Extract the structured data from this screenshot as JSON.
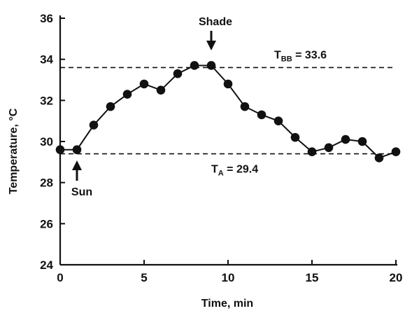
{
  "chart_data": {
    "type": "line",
    "title": "",
    "xlabel": "Time, min",
    "ylabel": "Temperature, °C",
    "xlim": [
      0,
      20
    ],
    "ylim": [
      24,
      36
    ],
    "x_ticks": [
      0,
      5,
      10,
      15,
      20
    ],
    "y_ticks": [
      24,
      26,
      28,
      30,
      32,
      34,
      36
    ],
    "grid": false,
    "series": [
      {
        "x": [
          0,
          1,
          2,
          3,
          4,
          5,
          6,
          7,
          8,
          9,
          10,
          11,
          12,
          13,
          14,
          15,
          16,
          17,
          18,
          19,
          20
        ],
        "y": [
          29.6,
          29.6,
          30.8,
          31.7,
          32.3,
          32.8,
          32.5,
          33.3,
          33.7,
          33.7,
          32.8,
          31.7,
          31.3,
          31.0,
          30.2,
          29.5,
          29.7,
          30.1,
          30.0,
          29.2,
          29.5
        ]
      }
    ],
    "reference_lines": [
      {
        "value": 33.6,
        "label_main": "T",
        "label_sub": "BB",
        "label_rest": " = 33.6",
        "style": "dashed"
      },
      {
        "value": 29.4,
        "label_main": "T",
        "label_sub": "A",
        "label_rest": " = 29.4",
        "style": "dashed"
      }
    ],
    "annotations": [
      {
        "text": "Shade",
        "x": 9,
        "arrow": "down"
      },
      {
        "text": "Sun",
        "x": 1,
        "arrow": "up"
      }
    ]
  }
}
